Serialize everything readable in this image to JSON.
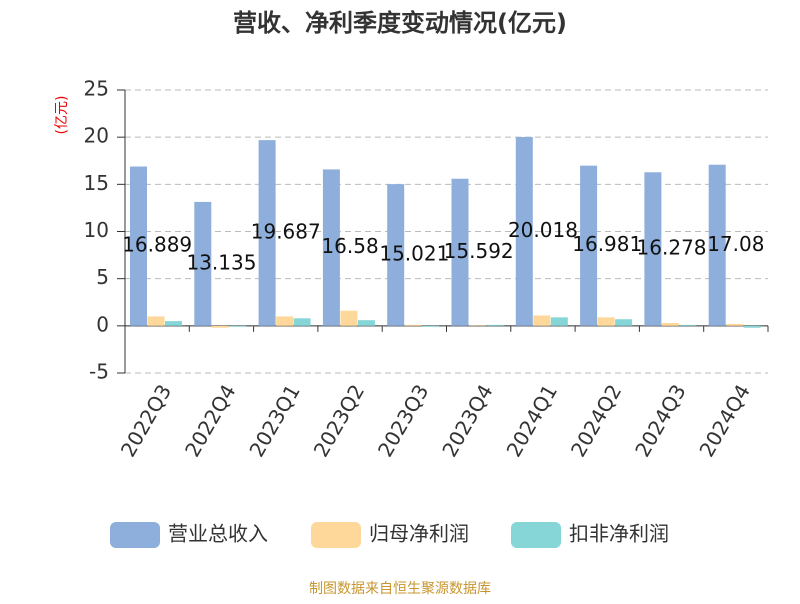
{
  "chart_data": {
    "type": "bar",
    "title": "营收、净利季度变动情况(亿元)",
    "y_label": "(亿元)",
    "categories": [
      "2022Q3",
      "2022Q4",
      "2023Q1",
      "2023Q2",
      "2023Q3",
      "2023Q4",
      "2024Q1",
      "2024Q2",
      "2024Q3",
      "2024Q4"
    ],
    "series": [
      {
        "name": "营业总收入",
        "color": "#8eaedb",
        "values": [
          16.889,
          13.135,
          19.687,
          16.58,
          15.021,
          15.592,
          20.018,
          16.981,
          16.278,
          17.08
        ],
        "show_labels": true
      },
      {
        "name": "归母净利润",
        "color": "#fdd89a",
        "values": [
          1.0,
          -0.2,
          1.0,
          1.6,
          0.1,
          0.05,
          1.1,
          0.9,
          0.3,
          0.2
        ],
        "show_labels": false
      },
      {
        "name": "扣非净利润",
        "color": "#86d5d7",
        "values": [
          0.5,
          -0.1,
          0.8,
          0.6,
          -0.1,
          0.1,
          0.9,
          0.7,
          0.1,
          -0.2
        ],
        "show_labels": false
      }
    ],
    "ylim": [
      -5,
      25
    ],
    "yticks": [
      -5,
      0,
      5,
      10,
      15,
      20,
      25
    ],
    "grid": true,
    "legend": "bottom",
    "source": "制图数据来自恒生聚源数据库"
  }
}
